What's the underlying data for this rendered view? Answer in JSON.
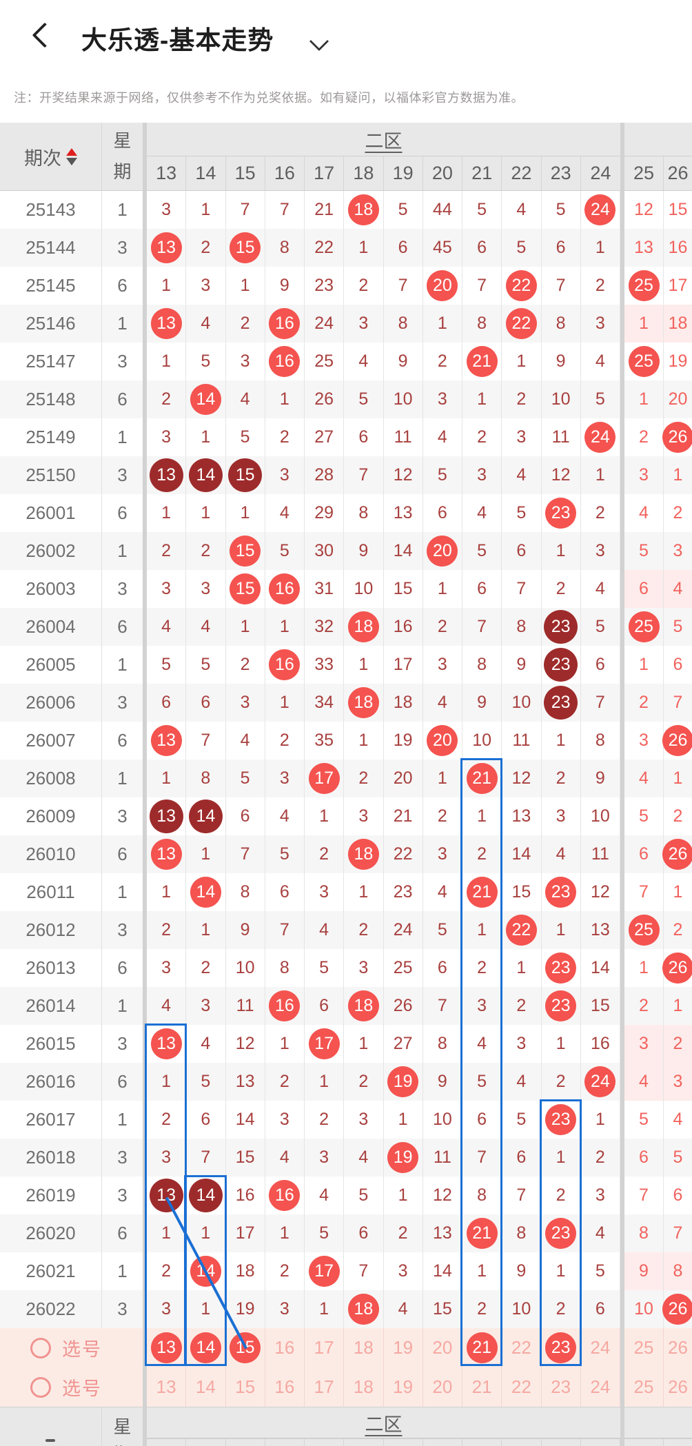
{
  "titlebar": {
    "back_icon": "chevron-left",
    "title": "大乐透-基本走势",
    "caret_icon": "chevron-down"
  },
  "notice": "注：开奖结果来源于网络，仅供参考不作为兑奖依据。如有疑问，以福体彩官方数据为准。",
  "table": {
    "issue_header": "期次",
    "week_header_chars": [
      "星",
      "期"
    ],
    "zone2_label": "二区",
    "zone2_columns": [
      "13",
      "14",
      "15",
      "16",
      "17",
      "18",
      "19",
      "20",
      "21",
      "22",
      "23",
      "24"
    ],
    "zone3_columns": [
      "25",
      "26"
    ],
    "cell_legend": "suffix * = drawn number (red circle), # = drawn repeat (dark circle), ! = pink highlighted cell",
    "rows": [
      {
        "issue": "25143",
        "week": "1",
        "cells": [
          "3",
          "1",
          "7",
          "7",
          "21",
          "18*",
          "5",
          "44",
          "5",
          "4",
          "5",
          "24*",
          "12",
          "15"
        ]
      },
      {
        "issue": "25144",
        "week": "3",
        "cells": [
          "13*",
          "2",
          "15*",
          "8",
          "22",
          "1",
          "6",
          "45",
          "6",
          "5",
          "6",
          "1",
          "13",
          "16"
        ]
      },
      {
        "issue": "25145",
        "week": "6",
        "cells": [
          "1",
          "3",
          "1",
          "9",
          "23",
          "2",
          "7",
          "20*",
          "7",
          "22*",
          "7",
          "2",
          "25*",
          "17"
        ]
      },
      {
        "issue": "25146",
        "week": "1",
        "cells": [
          "13*",
          "4",
          "2",
          "16*",
          "24",
          "3",
          "8",
          "1",
          "8",
          "22*",
          "8",
          "3",
          "1!",
          "18!"
        ]
      },
      {
        "issue": "25147",
        "week": "3",
        "cells": [
          "1",
          "5",
          "3",
          "16*",
          "25",
          "4",
          "9",
          "2",
          "21*",
          "1",
          "9",
          "4",
          "25*",
          "19"
        ]
      },
      {
        "issue": "25148",
        "week": "6",
        "cells": [
          "2",
          "14*",
          "4",
          "1",
          "26",
          "5",
          "10",
          "3",
          "1",
          "2",
          "10",
          "5",
          "1",
          "20"
        ]
      },
      {
        "issue": "25149",
        "week": "1",
        "cells": [
          "3",
          "1",
          "5",
          "2",
          "27",
          "6",
          "11",
          "4",
          "2",
          "3",
          "11",
          "24*",
          "2",
          "26*"
        ]
      },
      {
        "issue": "25150",
        "week": "3",
        "cells": [
          "13#",
          "14#",
          "15#",
          "3",
          "28",
          "7",
          "12",
          "5",
          "3",
          "4",
          "12",
          "1",
          "3",
          "1"
        ]
      },
      {
        "issue": "26001",
        "week": "6",
        "cells": [
          "1",
          "1",
          "1",
          "4",
          "29",
          "8",
          "13",
          "6",
          "4",
          "5",
          "23*",
          "2",
          "4",
          "2"
        ]
      },
      {
        "issue": "26002",
        "week": "1",
        "cells": [
          "2",
          "2",
          "15*",
          "5",
          "30",
          "9",
          "14",
          "20*",
          "5",
          "6",
          "1",
          "3",
          "5",
          "3"
        ]
      },
      {
        "issue": "26003",
        "week": "3",
        "cells": [
          "3",
          "3",
          "15*",
          "16*",
          "31",
          "10",
          "15",
          "1",
          "6",
          "7",
          "2",
          "4",
          "6!",
          "4!"
        ]
      },
      {
        "issue": "26004",
        "week": "6",
        "cells": [
          "4",
          "4",
          "1",
          "1",
          "32",
          "18*",
          "16",
          "2",
          "7",
          "8",
          "23#",
          "5",
          "25*",
          "5"
        ]
      },
      {
        "issue": "26005",
        "week": "1",
        "cells": [
          "5",
          "5",
          "2",
          "16*",
          "33",
          "1",
          "17",
          "3",
          "8",
          "9",
          "23#",
          "6",
          "1",
          "6"
        ]
      },
      {
        "issue": "26006",
        "week": "3",
        "cells": [
          "6",
          "6",
          "3",
          "1",
          "34",
          "18*",
          "18",
          "4",
          "9",
          "10",
          "23#",
          "7",
          "2",
          "7"
        ]
      },
      {
        "issue": "26007",
        "week": "6",
        "cells": [
          "13*",
          "7",
          "4",
          "2",
          "35",
          "1",
          "19",
          "20*",
          "10",
          "11",
          "1",
          "8",
          "3",
          "26*"
        ]
      },
      {
        "issue": "26008",
        "week": "1",
        "cells": [
          "1",
          "8",
          "5",
          "3",
          "17*",
          "2",
          "20",
          "1",
          "21*",
          "12",
          "2",
          "9",
          "4",
          "1"
        ]
      },
      {
        "issue": "26009",
        "week": "3",
        "cells": [
          "13#",
          "14#",
          "6",
          "4",
          "1",
          "3",
          "21",
          "2",
          "1",
          "13",
          "3",
          "10",
          "5",
          "2"
        ]
      },
      {
        "issue": "26010",
        "week": "6",
        "cells": [
          "13*",
          "1",
          "7",
          "5",
          "2",
          "18*",
          "22",
          "3",
          "2",
          "14",
          "4",
          "11",
          "6",
          "26*"
        ]
      },
      {
        "issue": "26011",
        "week": "1",
        "cells": [
          "1",
          "14*",
          "8",
          "6",
          "3",
          "1",
          "23",
          "4",
          "21*",
          "15",
          "23*",
          "12",
          "7",
          "1"
        ]
      },
      {
        "issue": "26012",
        "week": "3",
        "cells": [
          "2",
          "1",
          "9",
          "7",
          "4",
          "2",
          "24",
          "5",
          "1",
          "22*",
          "1",
          "13",
          "25*",
          "2"
        ]
      },
      {
        "issue": "26013",
        "week": "6",
        "cells": [
          "3",
          "2",
          "10",
          "8",
          "5",
          "3",
          "25",
          "6",
          "2",
          "1",
          "23*",
          "14",
          "1",
          "26*"
        ]
      },
      {
        "issue": "26014",
        "week": "1",
        "cells": [
          "4",
          "3",
          "11",
          "16*",
          "6",
          "18*",
          "26",
          "7",
          "3",
          "2",
          "23*",
          "15",
          "2",
          "1"
        ]
      },
      {
        "issue": "26015",
        "week": "3",
        "cells": [
          "13*",
          "4",
          "12",
          "1",
          "17*",
          "1",
          "27",
          "8",
          "4",
          "3",
          "1",
          "16",
          "3!",
          "2!"
        ]
      },
      {
        "issue": "26016",
        "week": "6",
        "cells": [
          "1",
          "5",
          "13",
          "2",
          "1",
          "2",
          "19*",
          "9",
          "5",
          "4",
          "2",
          "24*",
          "4!",
          "3!"
        ]
      },
      {
        "issue": "26017",
        "week": "1",
        "cells": [
          "2",
          "6",
          "14",
          "3",
          "2",
          "3",
          "1",
          "10",
          "6",
          "5",
          "23*",
          "1",
          "5",
          "4"
        ]
      },
      {
        "issue": "26018",
        "week": "3",
        "cells": [
          "3",
          "7",
          "15",
          "4",
          "3",
          "4",
          "19*",
          "11",
          "7",
          "6",
          "1",
          "2",
          "6",
          "5"
        ]
      },
      {
        "issue": "26019",
        "week": "3",
        "cells": [
          "13#",
          "14#",
          "16",
          "16*",
          "4",
          "5",
          "1",
          "12",
          "8",
          "7",
          "2",
          "3",
          "7",
          "6"
        ]
      },
      {
        "issue": "26020",
        "week": "6",
        "cells": [
          "1",
          "1",
          "17",
          "1",
          "5",
          "6",
          "2",
          "13",
          "21*",
          "8",
          "23*",
          "4",
          "8",
          "7"
        ]
      },
      {
        "issue": "26021",
        "week": "1",
        "cells": [
          "2",
          "14*",
          "18",
          "2",
          "17*",
          "7",
          "3",
          "14",
          "1",
          "9",
          "1",
          "5",
          "9!",
          "8!"
        ]
      },
      {
        "issue": "26022",
        "week": "3",
        "cells": [
          "3",
          "1",
          "19",
          "3",
          "1",
          "18*",
          "4",
          "15",
          "2",
          "10",
          "2",
          "6",
          "10",
          "26*"
        ]
      }
    ],
    "selection_rows": [
      {
        "label": "选号",
        "cells": [
          "13*",
          "14*",
          "15*",
          "16",
          "17",
          "18",
          "19",
          "20",
          "21*",
          "22",
          "23*",
          "24",
          "25",
          "26"
        ]
      },
      {
        "label": "选号",
        "cells": [
          "13",
          "14",
          "15",
          "16",
          "17",
          "18",
          "19",
          "20",
          "21",
          "22",
          "23",
          "24",
          "25",
          "26"
        ]
      }
    ]
  },
  "annotations": {
    "color": "#1a6fd4",
    "boxes": [
      {
        "col": "13",
        "from_issue": "26015",
        "to": "selection-row-1"
      },
      {
        "col": "14",
        "from_issue": "26019",
        "to": "selection-row-1"
      },
      {
        "col": "21",
        "from_issue": "26008",
        "to": "selection-row-1"
      },
      {
        "col": "23",
        "from_issue": "26017",
        "to": "selection-row-1"
      }
    ],
    "line": {
      "from": {
        "col": "13",
        "issue": "26019"
      },
      "to": {
        "col": "15",
        "issue": "selection-row-1"
      }
    }
  },
  "colors": {
    "hit_circle": "#f4534f",
    "hit_circle_dark": "#9e2b2b",
    "zone2_text": "#a8403e",
    "zone3_text": "#f2625d",
    "pink_cell_bg": "#fdeceb",
    "selection_bg": "#fcebe5",
    "selection_text": "#f09391",
    "annotation_blue": "#1a6fd4",
    "header_bg": "#e9e8e8"
  }
}
